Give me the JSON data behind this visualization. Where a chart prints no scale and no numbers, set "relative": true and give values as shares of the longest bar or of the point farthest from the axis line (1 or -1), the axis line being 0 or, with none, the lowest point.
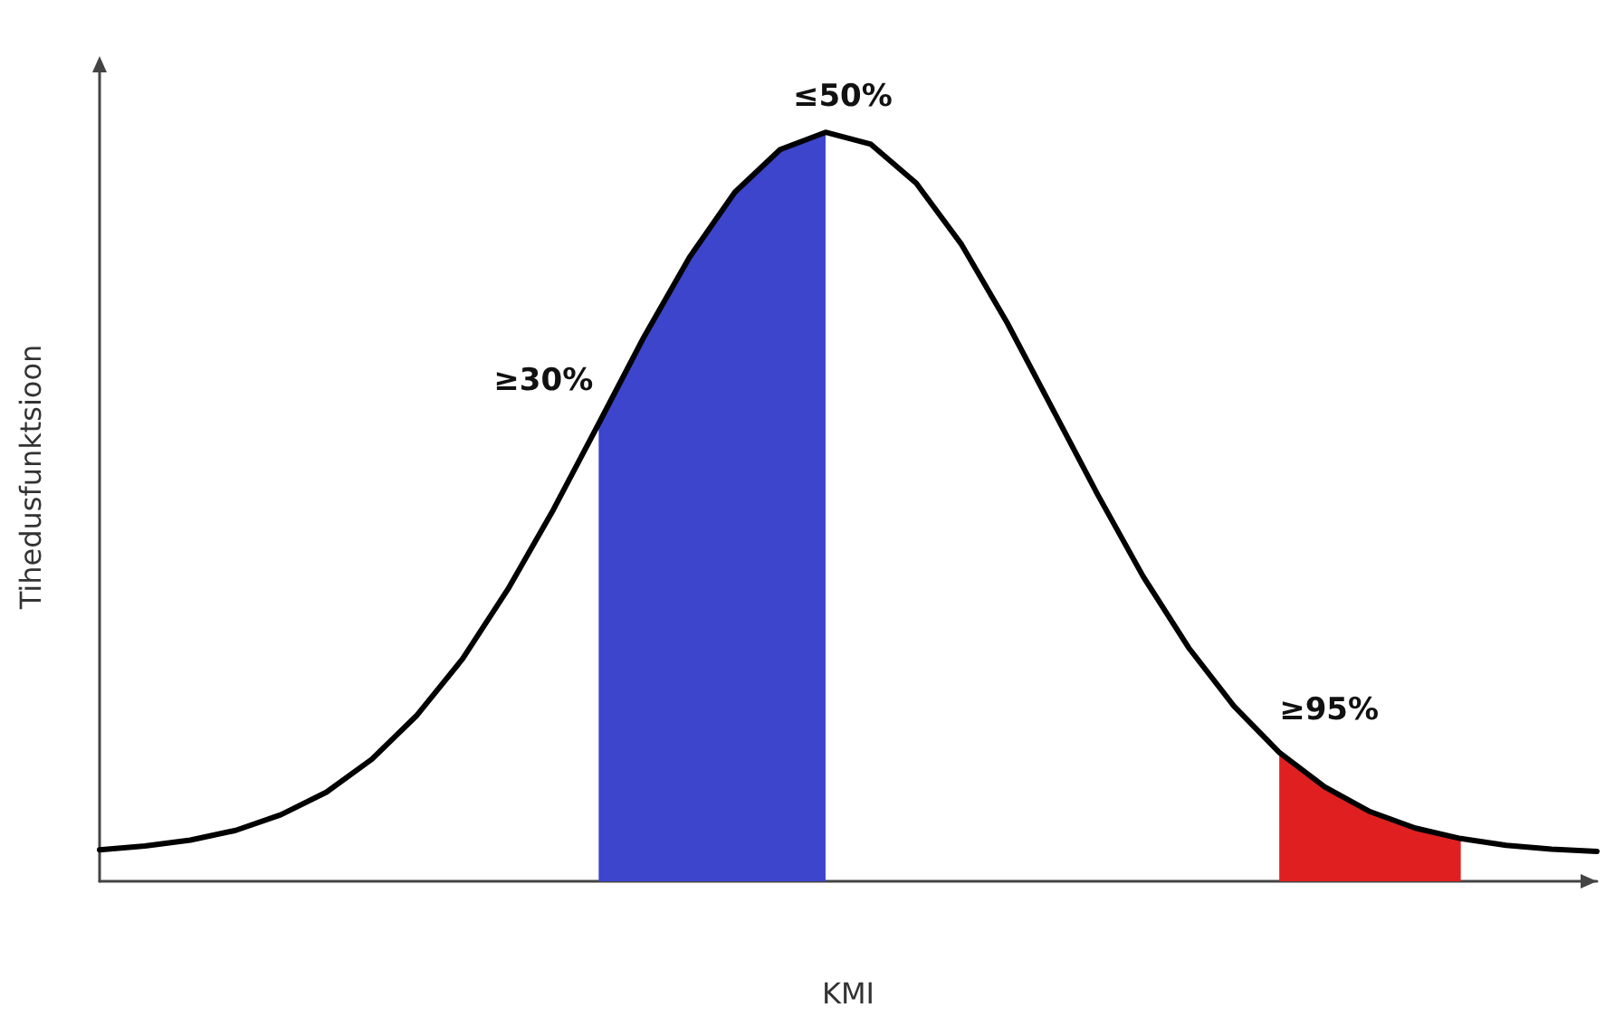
{
  "chart_data": {
    "type": "line",
    "relative": true,
    "xlabel": "KMI",
    "ylabel": "Tihedusfunktsioon",
    "grid": false,
    "marker": "none",
    "categories": [
      null,
      null,
      null,
      null,
      null,
      null,
      null,
      null,
      null,
      null,
      null,
      null,
      null,
      null,
      null,
      null,
      null,
      null,
      null,
      null,
      null,
      null,
      null,
      null,
      null,
      null,
      null,
      null,
      null,
      null,
      null,
      null,
      null,
      null
    ],
    "series": [
      {
        "type": "area",
        "color": "#3d45cc",
        "values": [
          null,
          null,
          null,
          null,
          null,
          null,
          null,
          null,
          null,
          null,
          null,
          0.611,
          0.727,
          0.833,
          0.92,
          0.977,
          1,
          null,
          null,
          null,
          null,
          null,
          null,
          null,
          null,
          null,
          null,
          null,
          null,
          null,
          null,
          null,
          null,
          null
        ]
      },
      {
        "type": "area",
        "color": "#e02020",
        "values": [
          null,
          null,
          null,
          null,
          null,
          null,
          null,
          null,
          null,
          null,
          null,
          null,
          null,
          null,
          null,
          null,
          null,
          null,
          null,
          null,
          null,
          null,
          null,
          null,
          null,
          null,
          0.172,
          0.126,
          0.093,
          0.071,
          0.057,
          null,
          null,
          null
        ]
      },
      {
        "color": "#000000",
        "values": [
          0.042,
          0.047,
          0.055,
          0.068,
          0.089,
          0.119,
          0.163,
          0.222,
          0.297,
          0.39,
          0.496,
          0.611,
          0.727,
          0.833,
          0.92,
          0.977,
          1,
          0.984,
          0.932,
          0.85,
          0.746,
          0.631,
          0.516,
          0.407,
          0.312,
          0.234,
          0.172,
          0.126,
          0.093,
          0.071,
          0.057,
          0.048,
          0.043,
          0.04
        ]
      }
    ],
    "annotations": [
      "≥30%",
      "≤50%",
      "≥95%"
    ]
  }
}
